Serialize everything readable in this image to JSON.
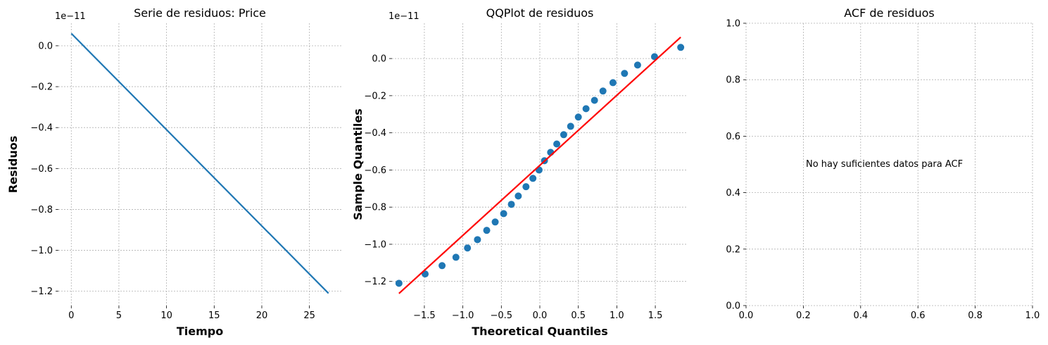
{
  "chart_data": [
    {
      "type": "line",
      "title": "Serie de residuos: Price",
      "xlabel": "Tiempo",
      "ylabel": "Residuos",
      "offset_label": "1e−11",
      "xlim": [
        -1.35,
        28.35
      ],
      "ylim": [
        -1.27,
        0.11
      ],
      "xticks": [
        0,
        5,
        10,
        15,
        20,
        25
      ],
      "xtick_labels": [
        "0",
        "5",
        "10",
        "15",
        "20",
        "25"
      ],
      "yticks": [
        0.0,
        -0.2,
        -0.4,
        -0.6,
        -0.8,
        -1.0,
        -1.2
      ],
      "ytick_labels": [
        "0.0",
        "−0.2",
        "−0.4",
        "−0.6",
        "−0.8",
        "−1.0",
        "−1.2"
      ],
      "grid": true,
      "series": [
        {
          "x": [
            0,
            27
          ],
          "y": [
            0.06,
            -1.21
          ],
          "color": "#1f77b4"
        }
      ]
    },
    {
      "type": "scatter",
      "title": "QQPlot de residuos",
      "xlabel": "Theoretical Quantiles",
      "ylabel": "Sample Quantiles",
      "offset_label": "1e−11",
      "xlim": [
        -1.92,
        1.92
      ],
      "ylim": [
        -1.33,
        0.19
      ],
      "xticks": [
        -1.5,
        -1.0,
        -0.5,
        0.0,
        0.5,
        1.0,
        1.5
      ],
      "xtick_labels": [
        "−1.5",
        "−1.0",
        "−0.5",
        "0.0",
        "0.5",
        "1.0",
        "1.5"
      ],
      "yticks": [
        0.0,
        -0.2,
        -0.4,
        -0.6,
        -0.8,
        -1.0,
        -1.2
      ],
      "ytick_labels": [
        "0.0",
        "−0.2",
        "−0.4",
        "−0.6",
        "−0.8",
        "−1.0",
        "−1.2"
      ],
      "grid": true,
      "series": [
        {
          "type": "scatter",
          "color": "#1f77b4",
          "x": [
            -1.83,
            -1.49,
            -1.27,
            -1.09,
            -0.94,
            -0.81,
            -0.69,
            -0.58,
            -0.47,
            -0.37,
            -0.28,
            -0.18,
            -0.09,
            -0.01,
            0.06,
            0.14,
            0.22,
            0.31,
            0.4,
            0.5,
            0.6,
            0.71,
            0.82,
            0.95,
            1.1,
            1.27,
            1.49,
            1.83
          ],
          "y": [
            -1.21,
            -1.16,
            -1.115,
            -1.07,
            -1.02,
            -0.975,
            -0.925,
            -0.88,
            -0.835,
            -0.785,
            -0.74,
            -0.69,
            -0.645,
            -0.6,
            -0.55,
            -0.505,
            -0.46,
            -0.41,
            -0.365,
            -0.315,
            -0.27,
            -0.225,
            -0.175,
            -0.13,
            -0.08,
            -0.035,
            0.01,
            0.06
          ]
        },
        {
          "type": "line",
          "color": "#ff0000",
          "x": [
            -1.83,
            1.83
          ],
          "y": [
            -1.265,
            0.115
          ]
        }
      ]
    },
    {
      "type": "line",
      "title": "ACF de residuos",
      "xlabel": "",
      "ylabel": "",
      "xlim": [
        0,
        1
      ],
      "ylim": [
        0,
        1
      ],
      "xticks": [
        0.0,
        0.2,
        0.4,
        0.6,
        0.8,
        1.0
      ],
      "xtick_labels": [
        "0.0",
        "0.2",
        "0.4",
        "0.6",
        "0.8",
        "1.0"
      ],
      "yticks": [
        0.0,
        0.2,
        0.4,
        0.6,
        0.8,
        1.0
      ],
      "ytick_labels": [
        "0.0",
        "0.2",
        "0.4",
        "0.6",
        "0.8",
        "1.0"
      ],
      "grid": true,
      "annotation": "No hay suficientes datos para ACF",
      "series": []
    }
  ]
}
